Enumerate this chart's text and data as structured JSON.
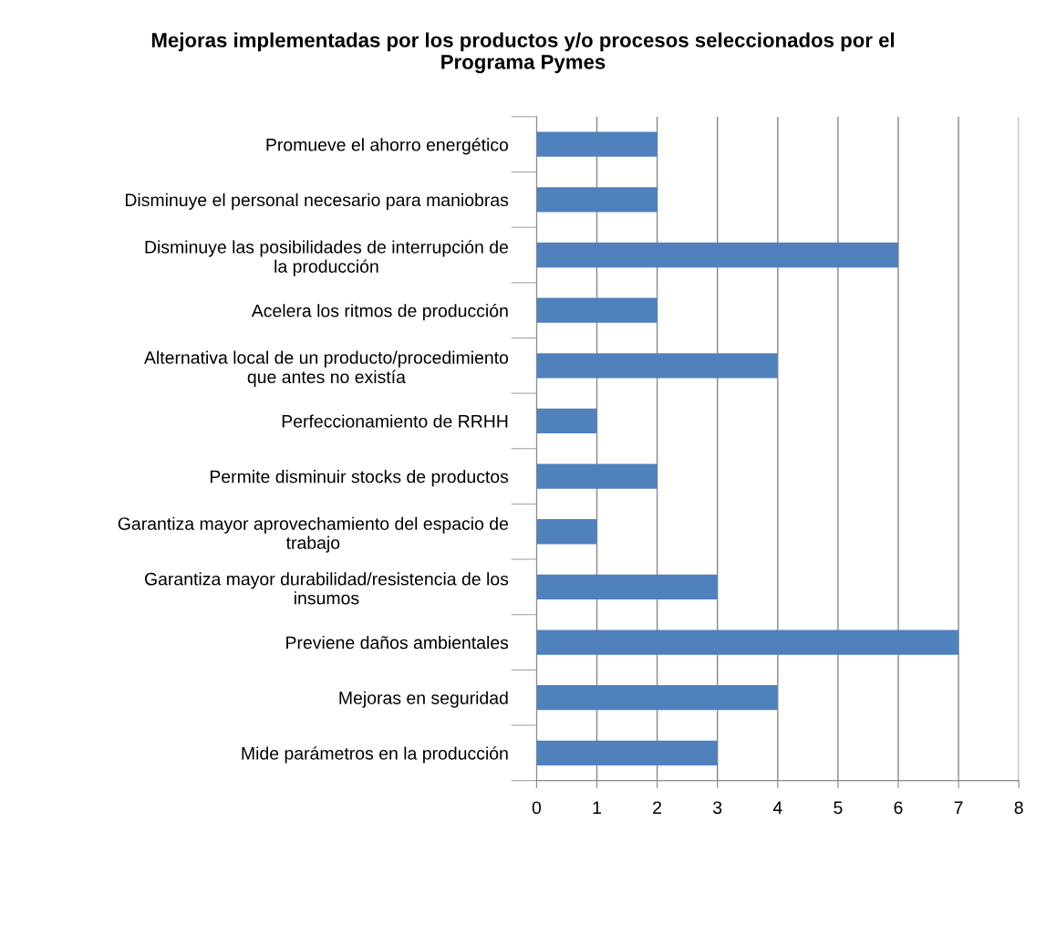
{
  "chart_data": {
    "type": "bar",
    "orientation": "horizontal",
    "title": "Mejoras implementadas por los productos y/o procesos seleccionados por el Programa Pymes",
    "categories": [
      "Promueve el ahorro energético",
      "Disminuye el personal necesario para maniobras",
      "Disminuye las posibilidades de interrupción de la producción",
      "Acelera los ritmos de producción",
      "Alternativa local de un producto/procedimiento que antes no existía",
      "Perfeccionamiento de RRHH",
      "Permite disminuir stocks de productos",
      "Garantiza mayor aprovechamiento del espacio de trabajo",
      "Garantiza mayor durabilidad/resistencia de los insumos",
      "Previene daños ambientales",
      "Mejoras en seguridad",
      "Mide parámetros en la producción"
    ],
    "values": [
      2,
      2,
      6,
      2,
      4,
      1,
      2,
      1,
      3,
      7,
      4,
      3
    ],
    "color": "#4f81bd",
    "xlim": [
      0,
      8
    ],
    "xticks": [
      0,
      1,
      2,
      3,
      4,
      5,
      6,
      7,
      8
    ],
    "grid": "x"
  }
}
